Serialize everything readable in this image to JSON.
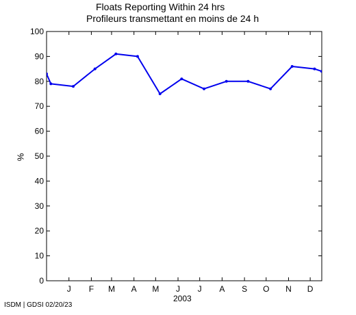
{
  "chart_data": {
    "type": "line",
    "title": "Floats Reporting Within 24 hrs",
    "subtitle": "Profileurs transmettant en moins de 24 h",
    "ylabel": "%",
    "xlabel": "2003",
    "ylim": [
      0,
      100
    ],
    "yticks": [
      0,
      10,
      20,
      30,
      40,
      50,
      60,
      70,
      80,
      90,
      100
    ],
    "x_tick_labels": [
      "J",
      "F",
      "M",
      "A",
      "M",
      "J",
      "J",
      "A",
      "S",
      "O",
      "N",
      "D"
    ],
    "grid": false,
    "series": [
      {
        "color": "#0000ee",
        "x": [
          "2002-12-15",
          "2002-12-21",
          "2003-01-21",
          "2003-02-20",
          "2003-03-21",
          "2003-04-20",
          "2003-05-21",
          "2003-06-20",
          "2003-07-21",
          "2003-08-21",
          "2003-09-20",
          "2003-10-21",
          "2003-11-20",
          "2003-12-21",
          "2003-12-31"
        ],
        "values": [
          83,
          79,
          78,
          85,
          91,
          90,
          75,
          81,
          77,
          80,
          80,
          77,
          86,
          85,
          84
        ]
      }
    ]
  },
  "footer": "ISDM | GDSI 02/20/23"
}
